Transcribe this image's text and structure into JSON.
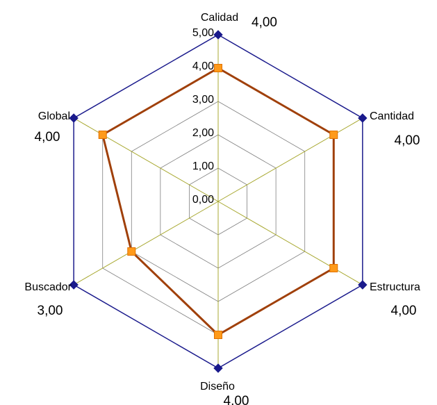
{
  "chart_data": {
    "type": "radar",
    "categories": [
      "Calidad",
      "Cantidad",
      "Estructura",
      "Diseño",
      "Buscador",
      "Global"
    ],
    "series": [
      {
        "values": [
          5,
          5,
          5,
          5,
          5,
          5
        ],
        "color": "#1a1a8c",
        "marker": "diamond"
      },
      {
        "values": [
          4,
          4,
          4,
          4,
          3,
          4
        ],
        "color": "#a0400a",
        "marker_color": "#ff9a1a",
        "marker": "square"
      }
    ],
    "value_labels": [
      "4,00",
      "4,00",
      "4,00",
      "4,00",
      "3,00",
      "4,00"
    ],
    "r_ticks": [
      "0,00",
      "1,00",
      "2,00",
      "3,00",
      "4,00",
      "5,00"
    ],
    "r_range": [
      0,
      5
    ],
    "grid": true,
    "spoke_color": "#a8a830",
    "grid_color": "#808080"
  }
}
